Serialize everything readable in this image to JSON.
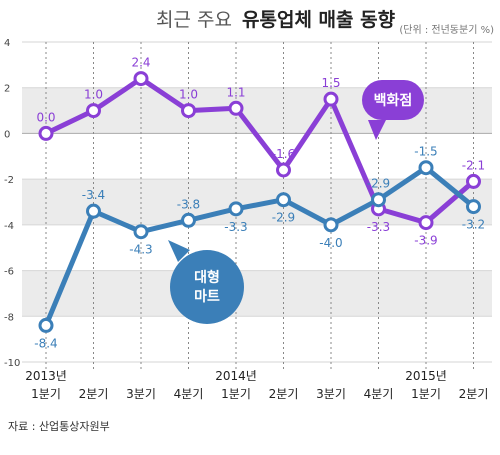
{
  "chart_data": {
    "type": "line",
    "title_light": "최근 주요",
    "title_bold": "유통업체 매출 동향",
    "unit": "(단위 : 전년동분기 %)",
    "categories": [
      "1분기",
      "2분기",
      "3분기",
      "4분기",
      "1분기",
      "2분기",
      "3분기",
      "4분기",
      "1분기",
      "2분기"
    ],
    "year_labels": [
      {
        "index": 0,
        "label": "2013년"
      },
      {
        "index": 4,
        "label": "2014년"
      },
      {
        "index": 8,
        "label": "2015년"
      }
    ],
    "ylim": [
      -10,
      4
    ],
    "yticks": [
      "4",
      "2",
      "0",
      "-2",
      "-4",
      "-6",
      "-8",
      "-10"
    ],
    "series": [
      {
        "name": "백화점",
        "color": "#8a3fd6",
        "values": [
          0.0,
          1.0,
          2.4,
          1.0,
          1.1,
          -1.6,
          1.5,
          -3.3,
          -3.9,
          -2.1
        ],
        "labels": [
          "0.0",
          "1.0",
          "2.4",
          "1.0",
          "1.1",
          "-1.6",
          "1.5",
          "-3.3",
          "-3.9",
          "-2.1"
        ]
      },
      {
        "name": "대형 마트",
        "name_lines": [
          "대형",
          "마트"
        ],
        "color": "#3b7fb8",
        "values": [
          -8.4,
          -3.4,
          -4.3,
          -3.8,
          -3.3,
          -2.9,
          -4.0,
          -2.9,
          -1.5,
          -3.2
        ],
        "labels": [
          "-8.4",
          "-3.4",
          "-4.3",
          "-3.8",
          "-3.3",
          "-2.9",
          "-4.0",
          "-2.9",
          "-1.5",
          "-3.2"
        ]
      }
    ],
    "grid": true,
    "source": "자료 : 산업통상자원부"
  }
}
